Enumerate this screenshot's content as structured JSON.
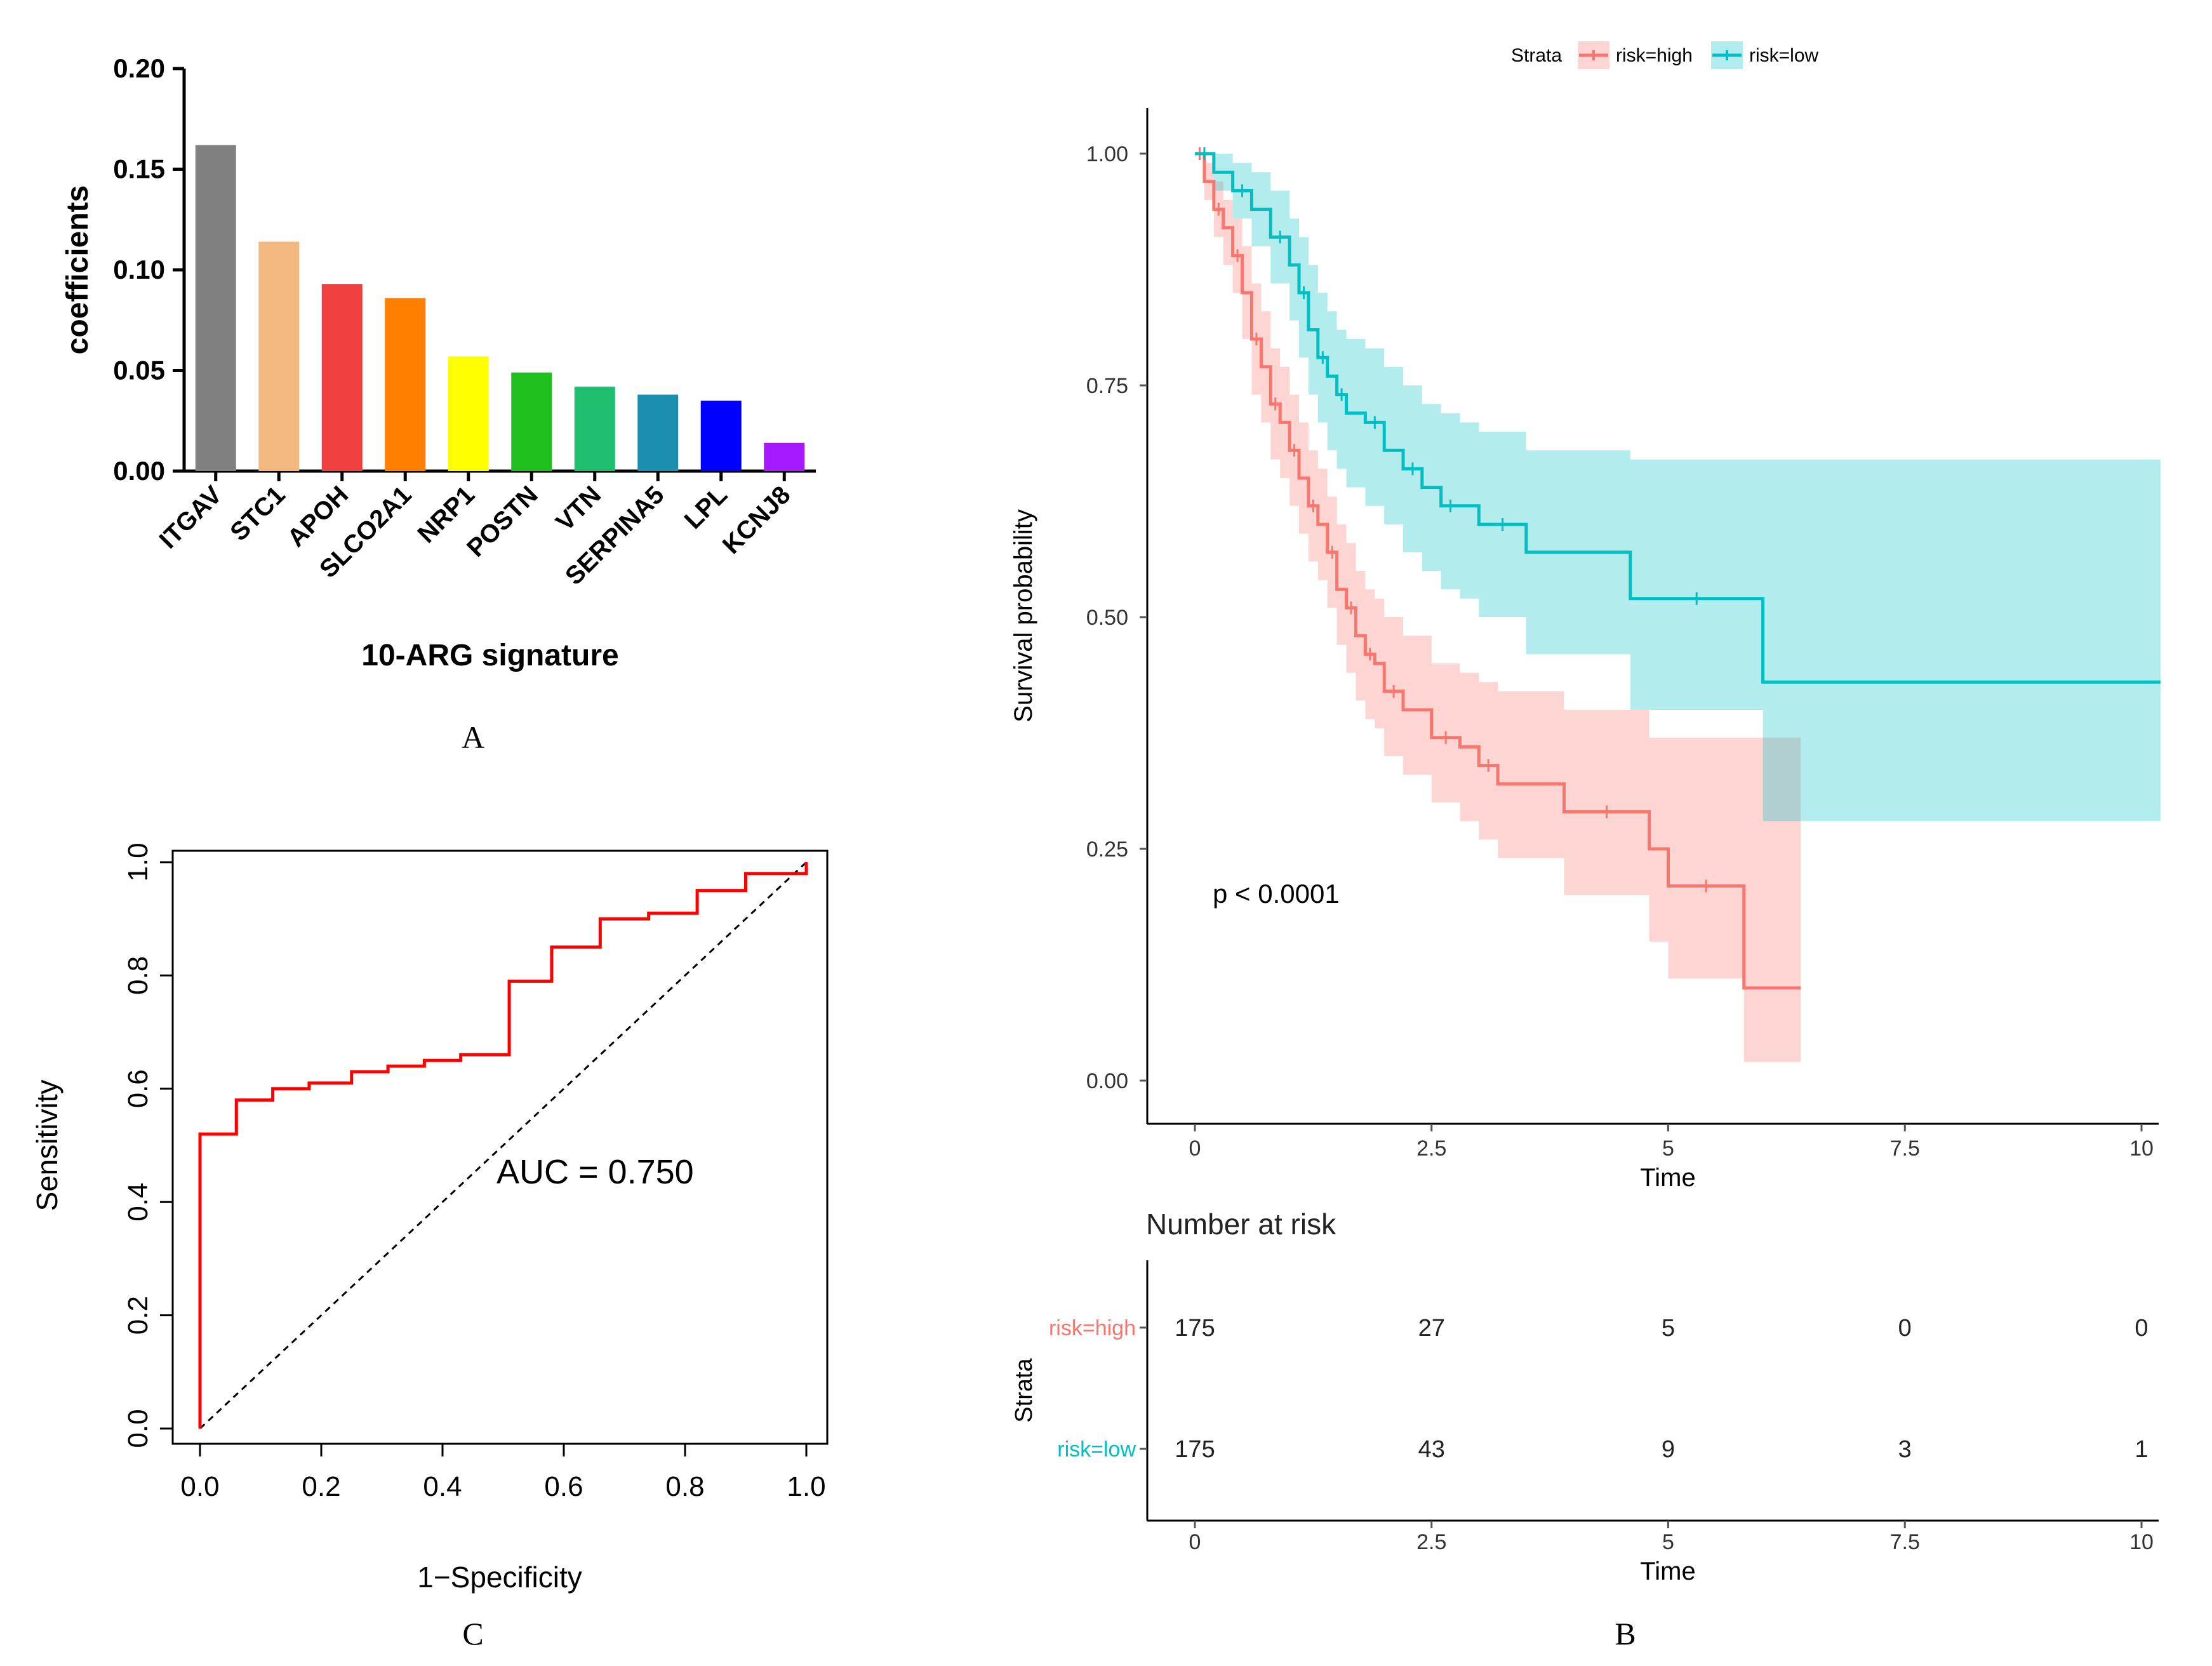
{
  "panel_labels": {
    "a": "A",
    "b": "B",
    "c": "C"
  },
  "chart_data": [
    {
      "id": "A",
      "type": "bar",
      "title": "",
      "xlabel": "10-ARG signature",
      "ylabel": "coefficients",
      "ylim": [
        0,
        0.2
      ],
      "yticks": [
        "0.00",
        "0.05",
        "0.10",
        "0.15",
        "0.20"
      ],
      "categories": [
        "ITGAV",
        "STC1",
        "APOH",
        "SLCO2A1",
        "NRP1",
        "POSTN",
        "VTN",
        "SERPINA5",
        "LPL",
        "KCNJ8"
      ],
      "values": [
        0.162,
        0.114,
        0.093,
        0.086,
        0.057,
        0.049,
        0.042,
        0.038,
        0.035,
        0.014
      ],
      "colors": [
        "#808080",
        "#f2b880",
        "#f04040",
        "#ff7f00",
        "#ffff00",
        "#1fbf1f",
        "#1fbf6f",
        "#1a8faf",
        "#0000ff",
        "#a61aff"
      ]
    },
    {
      "id": "B",
      "type": "line",
      "subtype": "kaplan-meier",
      "xlabel": "Time",
      "ylabel": "Survival probability",
      "xlim": [
        0,
        10
      ],
      "ylim": [
        0,
        1
      ],
      "xticks": [
        "0",
        "2.5",
        "5",
        "7.5",
        "10"
      ],
      "yticks": [
        "0.00",
        "0.25",
        "0.50",
        "0.75",
        "1.00"
      ],
      "legend_title": "Strata",
      "legend_position": "top",
      "annotation": "p < 0.0001",
      "series": [
        {
          "name": "risk=high",
          "color": "#f8766d",
          "x": [
            0,
            0.1,
            0.2,
            0.3,
            0.4,
            0.5,
            0.6,
            0.7,
            0.8,
            0.9,
            1.0,
            1.1,
            1.2,
            1.3,
            1.4,
            1.5,
            1.6,
            1.7,
            1.8,
            1.9,
            2.0,
            2.2,
            2.5,
            2.8,
            3.0,
            3.2,
            3.9,
            4.8,
            5.0,
            5.8,
            6.4
          ],
          "y": [
            1.0,
            0.97,
            0.94,
            0.92,
            0.89,
            0.85,
            0.8,
            0.77,
            0.73,
            0.71,
            0.68,
            0.65,
            0.62,
            0.6,
            0.57,
            0.53,
            0.51,
            0.48,
            0.46,
            0.45,
            0.42,
            0.4,
            0.37,
            0.36,
            0.34,
            0.32,
            0.29,
            0.25,
            0.21,
            0.1,
            0.1
          ],
          "ci_upper": [
            1.0,
            0.99,
            0.97,
            0.95,
            0.93,
            0.9,
            0.86,
            0.83,
            0.79,
            0.77,
            0.74,
            0.71,
            0.68,
            0.66,
            0.63,
            0.6,
            0.58,
            0.55,
            0.53,
            0.52,
            0.5,
            0.48,
            0.45,
            0.44,
            0.43,
            0.42,
            0.4,
            0.37,
            0.37,
            0.37,
            0.37
          ],
          "ci_lower": [
            1.0,
            0.95,
            0.91,
            0.88,
            0.85,
            0.8,
            0.74,
            0.71,
            0.67,
            0.65,
            0.62,
            0.59,
            0.56,
            0.54,
            0.51,
            0.47,
            0.44,
            0.41,
            0.39,
            0.38,
            0.35,
            0.33,
            0.3,
            0.28,
            0.26,
            0.24,
            0.2,
            0.15,
            0.11,
            0.02,
            0.02
          ]
        },
        {
          "name": "risk=low",
          "color": "#00bfc4",
          "x": [
            0,
            0.2,
            0.4,
            0.6,
            0.8,
            1.0,
            1.1,
            1.2,
            1.3,
            1.4,
            1.5,
            1.6,
            1.8,
            2.0,
            2.2,
            2.4,
            2.6,
            2.8,
            3.0,
            3.5,
            4.6,
            6.0,
            10.2
          ],
          "y": [
            1.0,
            0.98,
            0.96,
            0.94,
            0.91,
            0.88,
            0.85,
            0.81,
            0.78,
            0.76,
            0.74,
            0.72,
            0.71,
            0.68,
            0.66,
            0.64,
            0.62,
            0.62,
            0.6,
            0.57,
            0.52,
            0.43,
            0.43
          ],
          "ci_upper": [
            1.0,
            1.0,
            0.99,
            0.98,
            0.96,
            0.93,
            0.91,
            0.88,
            0.85,
            0.83,
            0.81,
            0.8,
            0.79,
            0.77,
            0.75,
            0.73,
            0.72,
            0.71,
            0.7,
            0.68,
            0.67,
            0.67,
            0.67
          ],
          "ci_lower": [
            1.0,
            0.96,
            0.93,
            0.9,
            0.86,
            0.82,
            0.78,
            0.74,
            0.71,
            0.68,
            0.66,
            0.64,
            0.62,
            0.6,
            0.57,
            0.55,
            0.53,
            0.52,
            0.5,
            0.46,
            0.4,
            0.28,
            0.28
          ]
        }
      ],
      "risk_table": {
        "title": "Number at risk",
        "strata_label": "Strata",
        "xlabel": "Time",
        "xticks": [
          "0",
          "2.5",
          "5",
          "7.5",
          "10"
        ],
        "rows": [
          {
            "name": "risk=high",
            "color": "#f8766d",
            "counts": [
              "175",
              "27",
              "5",
              "0",
              "0"
            ]
          },
          {
            "name": "risk=low",
            "color": "#00bfc4",
            "counts": [
              "175",
              "43",
              "9",
              "3",
              "1"
            ]
          }
        ]
      }
    },
    {
      "id": "C",
      "type": "line",
      "subtype": "roc",
      "xlabel": "1−Specificity",
      "ylabel": "Sensitivity",
      "xlim": [
        0,
        1
      ],
      "ylim": [
        0,
        1
      ],
      "xticks": [
        "0.0",
        "0.2",
        "0.4",
        "0.6",
        "0.8",
        "1.0"
      ],
      "yticks": [
        "0.0",
        "0.2",
        "0.4",
        "0.6",
        "0.8",
        "1.0"
      ],
      "annotation": "AUC = 0.750",
      "series": [
        {
          "name": "ROC",
          "color": "#ff0000",
          "x": [
            0,
            0,
            0.06,
            0.06,
            0.12,
            0.12,
            0.18,
            0.18,
            0.25,
            0.25,
            0.31,
            0.31,
            0.37,
            0.37,
            0.43,
            0.43,
            0.51,
            0.51,
            0.58,
            0.58,
            0.66,
            0.66,
            0.74,
            0.74,
            0.82,
            0.82,
            0.9,
            0.9,
            1.0,
            1.0
          ],
          "y": [
            0,
            0.52,
            0.52,
            0.58,
            0.58,
            0.6,
            0.6,
            0.61,
            0.61,
            0.63,
            0.63,
            0.64,
            0.64,
            0.65,
            0.65,
            0.66,
            0.66,
            0.79,
            0.79,
            0.85,
            0.85,
            0.9,
            0.9,
            0.91,
            0.91,
            0.95,
            0.95,
            0.98,
            0.98,
            1.0
          ]
        }
      ]
    }
  ]
}
